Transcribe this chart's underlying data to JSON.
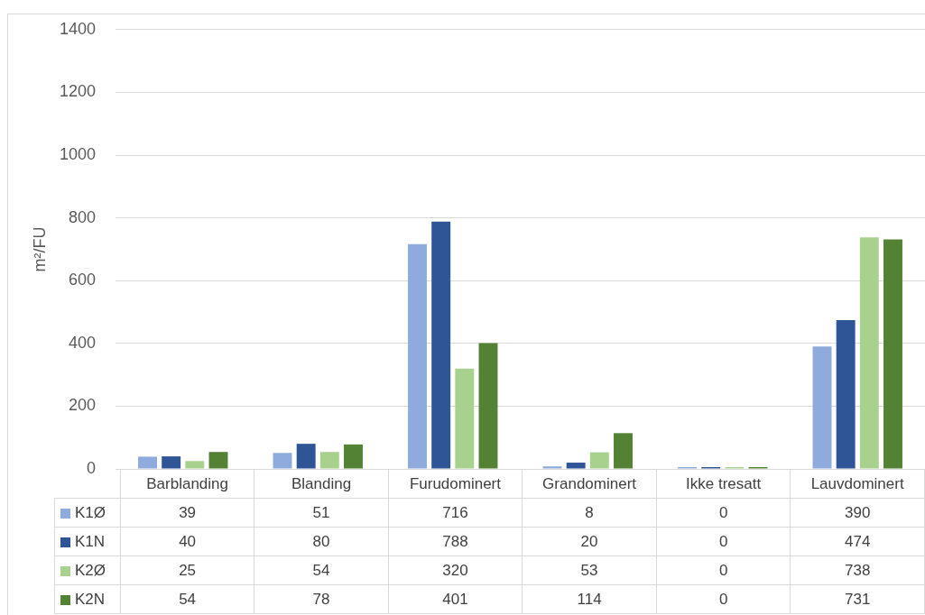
{
  "chart_data": {
    "type": "bar",
    "ylabel": "m²/FU",
    "categories": [
      "Barblanding",
      "Blanding",
      "Furudominert",
      "Grandominert",
      "Ikke tresatt",
      "Lauvdominert"
    ],
    "series": [
      {
        "name": "K1Ø",
        "color": "#8faadc",
        "values": [
          39,
          51,
          716,
          8,
          0,
          390
        ]
      },
      {
        "name": "K1N",
        "color": "#2f5597",
        "values": [
          40,
          80,
          788,
          20,
          0,
          474
        ]
      },
      {
        "name": "K2Ø",
        "color": "#a9d18e",
        "values": [
          25,
          54,
          320,
          53,
          0,
          738
        ]
      },
      {
        "name": "K2N",
        "color": "#548235",
        "values": [
          54,
          78,
          401,
          114,
          0,
          731
        ]
      }
    ],
    "ylim": [
      0,
      1400
    ],
    "yticks": [
      0,
      200,
      400,
      600,
      800,
      1000,
      1200,
      1400
    ],
    "grid": "y",
    "legend": "bottom",
    "data_labels": true
  }
}
